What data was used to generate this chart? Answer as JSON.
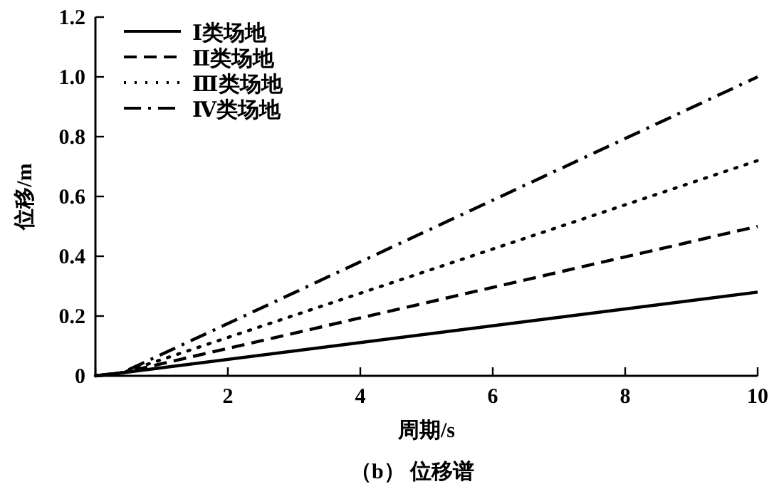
{
  "chart_data": {
    "type": "line",
    "title": "（b） 位移谱",
    "xlabel": "周期/s",
    "ylabel": "位移/m",
    "x": [
      0,
      0.4,
      10
    ],
    "series": [
      {
        "name": "Ⅰ类场地",
        "color": "#000000",
        "line_style": "solid",
        "values": [
          0,
          0.01,
          0.28
        ]
      },
      {
        "name": "Ⅱ类场地",
        "color": "#000000",
        "line_style": "dashed",
        "values": [
          0,
          0.01,
          0.5
        ]
      },
      {
        "name": "Ⅲ类场地",
        "color": "#000000",
        "line_style": "dotted",
        "values": [
          0,
          0.01,
          0.72
        ]
      },
      {
        "name": "Ⅳ类场地",
        "color": "#000000",
        "line_style": "dashdot",
        "values": [
          0,
          0.01,
          1.0
        ]
      }
    ],
    "xlim": [
      0,
      10
    ],
    "xticks": [
      {
        "value": 0,
        "label": null
      },
      2,
      4,
      6,
      8,
      10
    ],
    "ylim": [
      0,
      1.2
    ],
    "yticks": [
      0,
      0.2,
      0.4,
      0.6,
      0.8,
      {
        "value": 1,
        "label": "1.0"
      },
      1.2
    ],
    "legend": "top left",
    "grid": false,
    "marker": "none"
  }
}
